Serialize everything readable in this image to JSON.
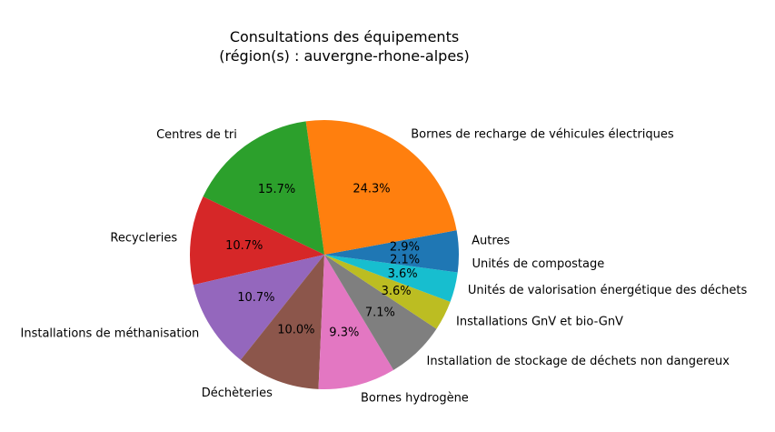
{
  "chart_data": {
    "type": "pie",
    "title": "Consultations des équipements",
    "subtitle": "(région(s) : auvergne-rhone-alpes)",
    "slices": [
      {
        "label": "Autres",
        "value": 2.9,
        "pct_label": "2.9%",
        "color": "#1f77b4"
      },
      {
        "label": "Bornes de recharge de véhicules électriques",
        "value": 24.3,
        "pct_label": "24.3%",
        "color": "#ff7f0e"
      },
      {
        "label": "Centres de tri",
        "value": 15.7,
        "pct_label": "15.7%",
        "color": "#2ca02c"
      },
      {
        "label": "Recycleries",
        "value": 10.7,
        "pct_label": "10.7%",
        "color": "#d62728"
      },
      {
        "label": "Installations de méthanisation",
        "value": 10.7,
        "pct_label": "10.7%",
        "color": "#9467bd"
      },
      {
        "label": "Déchèteries",
        "value": 10.0,
        "pct_label": "10.0%",
        "color": "#8c564b"
      },
      {
        "label": "Bornes hydrogène",
        "value": 9.3,
        "pct_label": "9.3%",
        "color": "#e377c2"
      },
      {
        "label": "Installation de stockage de déchets non dangereux",
        "value": 7.1,
        "pct_label": "7.1%",
        "color": "#7f7f7f"
      },
      {
        "label": "Installations GnV et bio-GnV",
        "value": 3.6,
        "pct_label": "3.6%",
        "color": "#bcbd22"
      },
      {
        "label": "Unités de valorisation énergétique des déchets",
        "value": 3.6,
        "pct_label": "3.6%",
        "color": "#17becf"
      },
      {
        "label": "Unités de compostage",
        "value": 2.1,
        "pct_label": "2.1%",
        "color": "#1f77b4"
      }
    ]
  }
}
